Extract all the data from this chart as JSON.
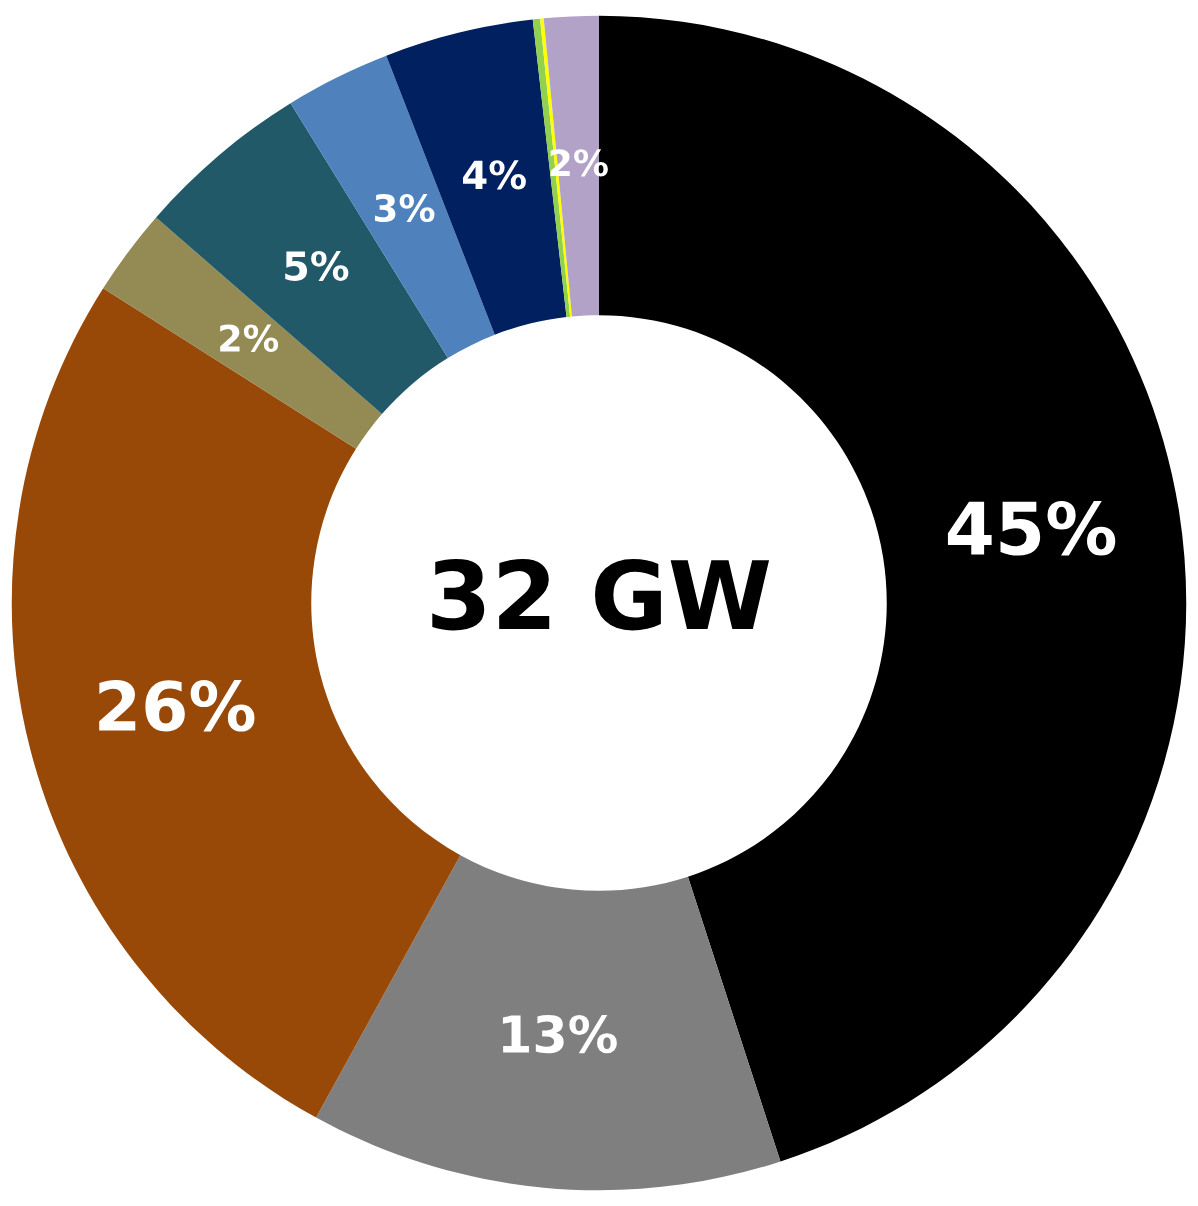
{
  "chart_data": {
    "type": "donut",
    "categories": [
      null,
      null,
      null,
      null,
      null,
      null,
      null,
      null,
      null,
      null
    ],
    "values": [
      45,
      13,
      26,
      2.4,
      4.8,
      2.9,
      4.1,
      0.2,
      0.1,
      1.5
    ],
    "value_labels": [
      "45%",
      "13%",
      "26%",
      "2%",
      "5%",
      "3%",
      "4%",
      null,
      null,
      "2%"
    ],
    "colors": [
      "#000000",
      "#7f7f7f",
      "#984807",
      "#948a54",
      "#215968",
      "#4f81bd",
      "#002060",
      "#92d050",
      "#ffff00",
      "#b3a2c7"
    ],
    "annotations": [
      "32 GW"
    ],
    "legend": false
  }
}
